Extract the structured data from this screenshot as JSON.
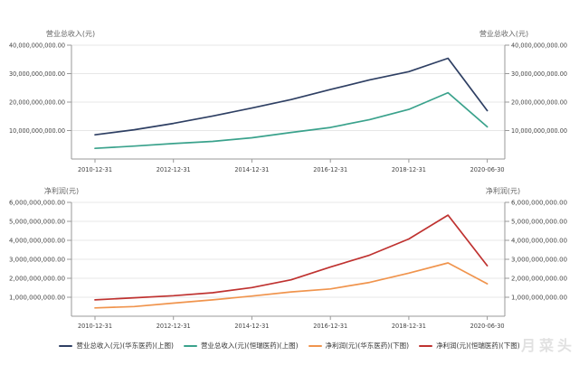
{
  "watermark": "月菜头",
  "legend": {
    "position": "bottom",
    "items": [
      {
        "label": "营业总收入(元)(华东医药)(上图)",
        "color": "#2e3f63"
      },
      {
        "label": "营业总收入(元)(恒瑞医药)(上图)",
        "color": "#3aa28c"
      },
      {
        "label": "净利润(元)(华东医药)(下图)",
        "color": "#f0944d"
      },
      {
        "label": "净利润(元)(恒瑞医药)(下图)",
        "color": "#bf3230"
      }
    ]
  },
  "chart_data": [
    {
      "id": "operating-revenue",
      "type": "line",
      "title_left": "营业总收入(元)",
      "title_right": "营业总收入(元)",
      "grid": true,
      "legend_position": "bottom",
      "x": [
        "2010-12-31",
        "2011-12-31",
        "2012-12-31",
        "2013-12-31",
        "2014-12-31",
        "2015-12-31",
        "2016-12-31",
        "2017-12-31",
        "2018-12-31",
        "2019-12-31",
        "2020-06-30"
      ],
      "xtick_indices": [
        0,
        2,
        4,
        6,
        8,
        10
      ],
      "xtick_labels": [
        "2010-12-31",
        "2012-12-31",
        "2014-12-31",
        "2016-12-31",
        "2018-12-31",
        "2020-06-30"
      ],
      "ylim": [
        0,
        40000000000
      ],
      "yticks": [
        10000000000,
        20000000000,
        30000000000,
        40000000000
      ],
      "ytick_labels": [
        "10,000,000,000.00",
        "20,000,000,000.00",
        "30,000,000,000.00",
        "40,000,000,000.00"
      ],
      "series": [
        {
          "name": "营业总收入(元)(华东医药)(上图)",
          "color": "#2e3f63",
          "values": [
            8500000000,
            10300000000,
            12500000000,
            15100000000,
            17900000000,
            20900000000,
            24400000000,
            27800000000,
            30700000000,
            35400000000,
            17000000000
          ]
        },
        {
          "name": "营业总收入(元)(恒瑞医药)(上图)",
          "color": "#3aa28c",
          "values": [
            3740000000,
            4550000000,
            5440000000,
            6200000000,
            7450000000,
            9320000000,
            11090000000,
            13840000000,
            17420000000,
            23290000000,
            11310000000
          ]
        }
      ]
    },
    {
      "id": "net-profit",
      "type": "line",
      "title_left": "净利润(元)",
      "title_right": "净利润(元)",
      "grid": true,
      "legend_position": "bottom",
      "x": [
        "2010-12-31",
        "2011-12-31",
        "2012-12-31",
        "2013-12-31",
        "2014-12-31",
        "2015-12-31",
        "2016-12-31",
        "2017-12-31",
        "2018-12-31",
        "2019-12-31",
        "2020-06-30"
      ],
      "xtick_indices": [
        0,
        2,
        4,
        6,
        8,
        10
      ],
      "xtick_labels": [
        "2010-12-31",
        "2012-12-31",
        "2014-12-31",
        "2016-12-31",
        "2018-12-31",
        "2020-06-30"
      ],
      "ylim": [
        0,
        6000000000
      ],
      "yticks": [
        1000000000,
        2000000000,
        3000000000,
        4000000000,
        5000000000,
        6000000000
      ],
      "ytick_labels": [
        "1,000,000,000.00",
        "2,000,000,000.00",
        "3,000,000,000.00",
        "4,000,000,000.00",
        "5,000,000,000.00",
        "6,000,000,000.00"
      ],
      "series": [
        {
          "name": "净利润(元)(华东医药)(下图)",
          "color": "#f0944d",
          "values": [
            440000000,
            510000000,
            690000000,
            860000000,
            1060000000,
            1280000000,
            1440000000,
            1780000000,
            2270000000,
            2810000000,
            1710000000
          ]
        },
        {
          "name": "净利润(元)(恒瑞医药)(下图)",
          "color": "#bf3230",
          "values": [
            860000000,
            970000000,
            1080000000,
            1240000000,
            1510000000,
            1920000000,
            2590000000,
            3220000000,
            4070000000,
            5330000000,
            2660000000
          ]
        }
      ]
    }
  ]
}
